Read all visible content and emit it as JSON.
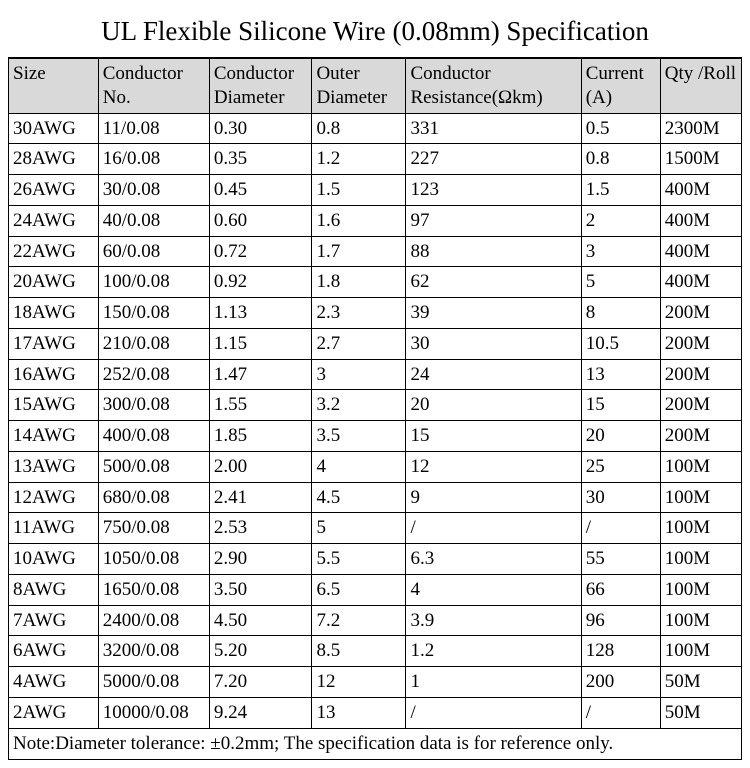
{
  "title": "UL Flexible Silicone Wire (0.08mm) Specification",
  "columns": [
    "Size",
    "Conductor No.",
    "Conductor Diameter",
    "Outer Diameter",
    "Conductor Resistance(Ωkm)",
    "Current (A)",
    "Qty /Roll"
  ],
  "rows": [
    [
      "30AWG",
      "11/0.08",
      "0.30",
      "0.8",
      "331",
      "0.5",
      "2300M"
    ],
    [
      "28AWG",
      "16/0.08",
      "0.35",
      "1.2",
      "227",
      "0.8",
      "1500M"
    ],
    [
      "26AWG",
      "30/0.08",
      "0.45",
      "1.5",
      "123",
      "1.5",
      "400M"
    ],
    [
      "24AWG",
      "40/0.08",
      "0.60",
      "1.6",
      "97",
      "2",
      "400M"
    ],
    [
      "22AWG",
      "60/0.08",
      "0.72",
      "1.7",
      "88",
      "3",
      "400M"
    ],
    [
      "20AWG",
      "100/0.08",
      "0.92",
      "1.8",
      "62",
      "5",
      "400M"
    ],
    [
      "18AWG",
      "150/0.08",
      "1.13",
      "2.3",
      "39",
      "8",
      "200M"
    ],
    [
      "17AWG",
      "210/0.08",
      "1.15",
      "2.7",
      "30",
      "10.5",
      "200M"
    ],
    [
      "16AWG",
      "252/0.08",
      "1.47",
      "3",
      "24",
      "13",
      "200M"
    ],
    [
      "15AWG",
      "300/0.08",
      "1.55",
      "3.2",
      "20",
      "15",
      "200M"
    ],
    [
      "14AWG",
      "400/0.08",
      "1.85",
      "3.5",
      "15",
      "20",
      "200M"
    ],
    [
      "13AWG",
      "500/0.08",
      "2.00",
      "4",
      "12",
      "25",
      "100M"
    ],
    [
      "12AWG",
      "680/0.08",
      "2.41",
      "4.5",
      "9",
      "30",
      "100M"
    ],
    [
      "11AWG",
      "750/0.08",
      "2.53",
      "5",
      "/",
      "/",
      "100M"
    ],
    [
      "10AWG",
      "1050/0.08",
      "2.90",
      "5.5",
      "6.3",
      "55",
      "100M"
    ],
    [
      "8AWG",
      "1650/0.08",
      "3.50",
      "6.5",
      "4",
      "66",
      "100M"
    ],
    [
      "7AWG",
      "2400/0.08",
      "4.50",
      "7.2",
      "3.9",
      "96",
      "100M"
    ],
    [
      "6AWG",
      "3200/0.08",
      "5.20",
      "8.5",
      "1.2",
      "128",
      "100M"
    ],
    [
      "4AWG",
      "5000/0.08",
      "7.20",
      "12",
      "1",
      "200",
      "50M"
    ],
    [
      "2AWG",
      "10000/0.08",
      "9.24",
      "13",
      "/",
      "/",
      "50M"
    ]
  ],
  "note": "Note:Diameter tolerance: ±0.2mm; The specification data is for reference only.",
  "col_classes": [
    "col-size",
    "col-cno",
    "col-cdia",
    "col-odia",
    "col-res",
    "col-cur",
    "col-qty"
  ]
}
